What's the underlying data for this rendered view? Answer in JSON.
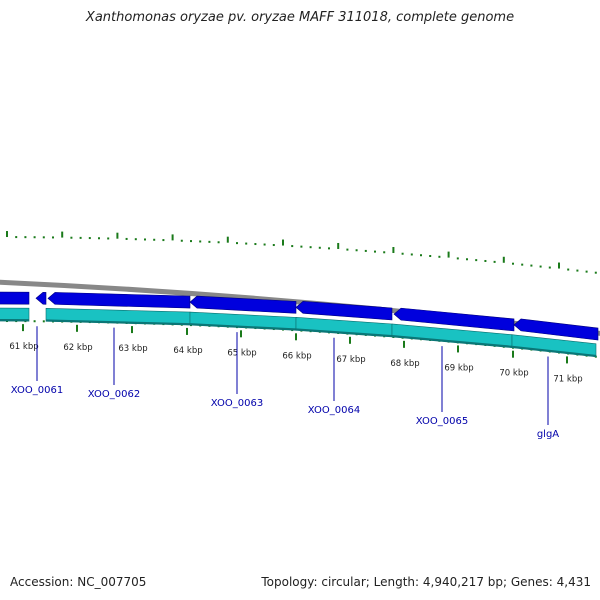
{
  "title": "Xanthomonas oryzae pv. oryzae MAFF 311018, complete genome",
  "footer": {
    "accession": "Accession: NC_007705",
    "summary": "Topology: circular; Length: 4,940,217 bp; Genes: 4,431"
  },
  "colors": {
    "gene_forward": "#0000dd",
    "gene_reverse": "#19c2c2",
    "backbone": "#888888",
    "gc_skew": "#1a7a1a",
    "label": "#0000aa"
  },
  "map": {
    "ticks": [
      {
        "label": "61 kbp"
      },
      {
        "label": "62 kbp"
      },
      {
        "label": "63 kbp"
      },
      {
        "label": "64 kbp"
      },
      {
        "label": "65 kbp"
      },
      {
        "label": "66 kbp"
      },
      {
        "label": "67 kbp"
      },
      {
        "label": "68 kbp"
      },
      {
        "label": "69 kbp"
      },
      {
        "label": "70 kbp"
      },
      {
        "label": "71 kbp"
      }
    ],
    "genes": [
      {
        "name": "XOO_0061"
      },
      {
        "name": "XOO_0062"
      },
      {
        "name": "XOO_0063"
      },
      {
        "name": "XOO_0064"
      },
      {
        "name": "XOO_0065"
      },
      {
        "name": "glgA"
      }
    ]
  }
}
